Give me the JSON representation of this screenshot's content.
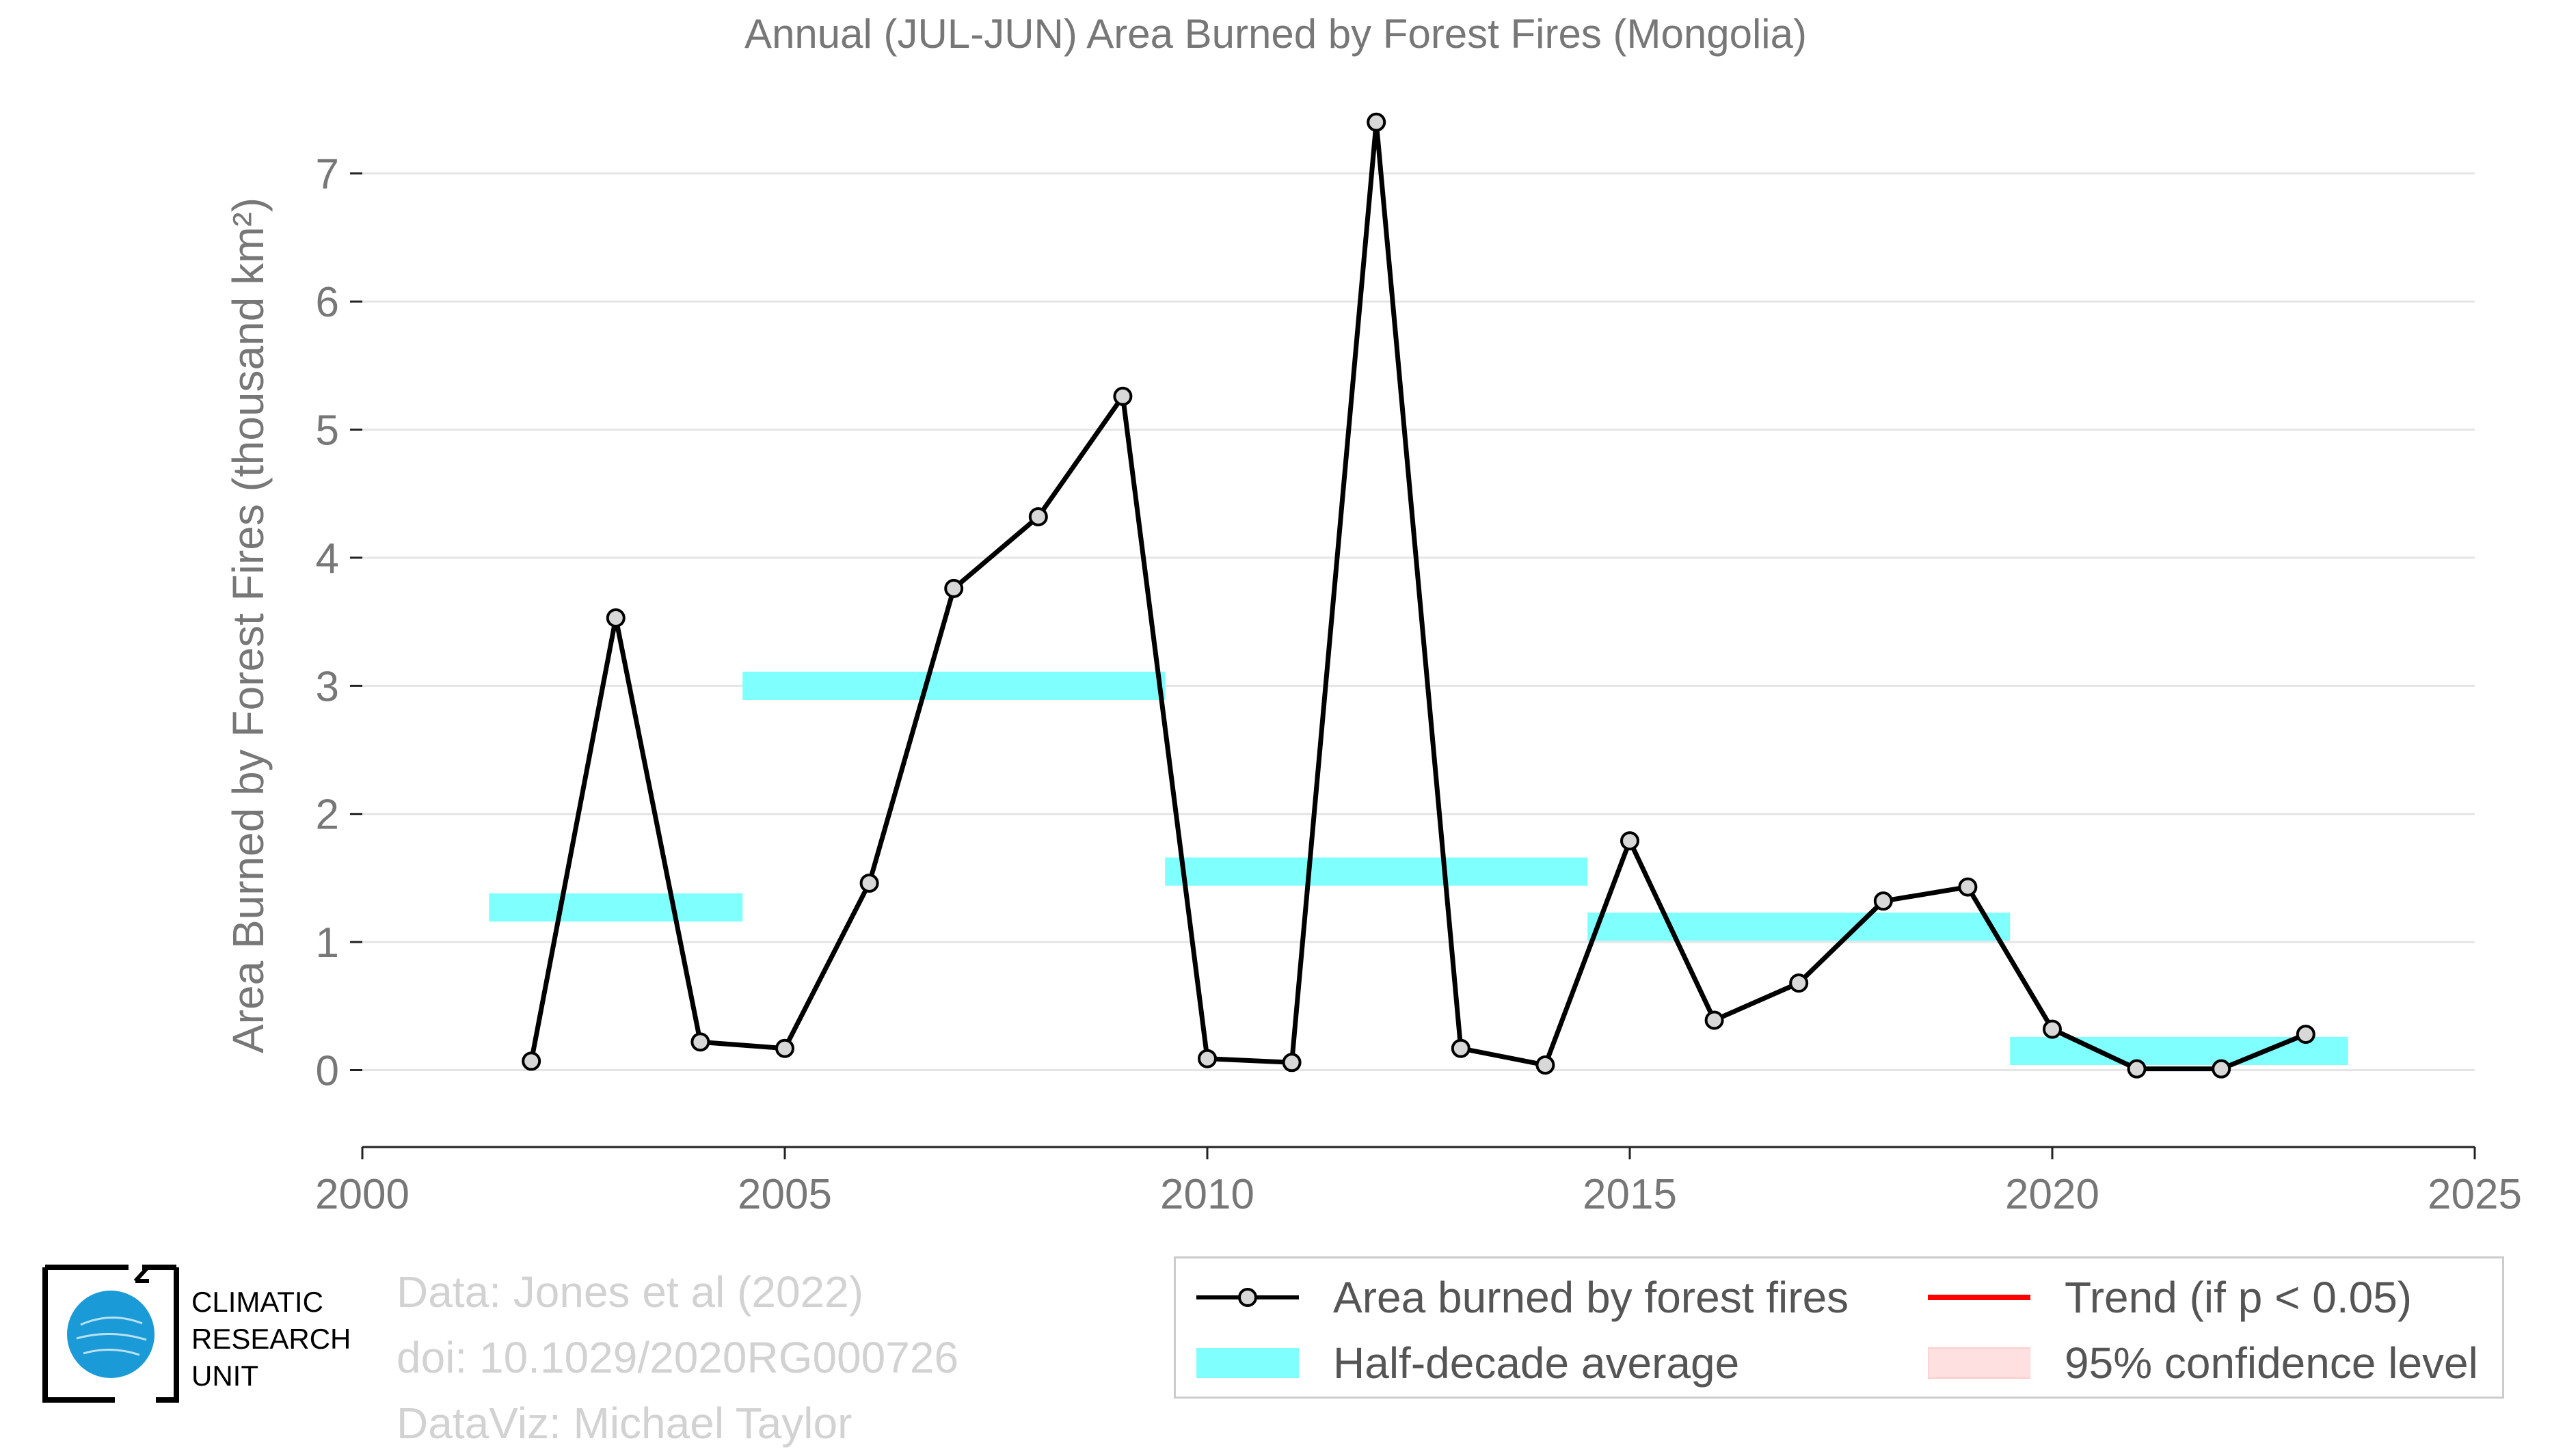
{
  "chart_data": {
    "type": "line",
    "title": "Annual (JUL-JUN) Area Burned by Forest Fires (Mongolia)",
    "xlabel": "",
    "ylabel": "Area Burned by Forest Fires (thousand km²)",
    "xlim": [
      2000,
      2025
    ],
    "ylim": [
      -0.6,
      7.5
    ],
    "x_ticks": [
      2000,
      2005,
      2010,
      2015,
      2020,
      2025
    ],
    "y_ticks": [
      0,
      1,
      2,
      3,
      4,
      5,
      6,
      7
    ],
    "grid": "horizontal",
    "legend_position": "bottom-right",
    "series": [
      {
        "name": "Area burned by forest fires",
        "color": "#000000",
        "marker": "circle",
        "x": [
          2002,
          2003,
          2004,
          2005,
          2006,
          2007,
          2008,
          2009,
          2010,
          2011,
          2012,
          2013,
          2014,
          2015,
          2016,
          2017,
          2018,
          2019,
          2020,
          2021,
          2022,
          2023
        ],
        "y": [
          0.07,
          3.53,
          0.22,
          0.17,
          1.46,
          3.76,
          4.32,
          5.26,
          0.09,
          0.06,
          7.4,
          0.17,
          0.04,
          1.79,
          0.39,
          0.68,
          1.32,
          1.43,
          0.32,
          0.01,
          0.01,
          0.28
        ]
      },
      {
        "name": "Half-decade average",
        "color": "#80ffff",
        "type": "bars",
        "segments": [
          {
            "x_start": 2001.5,
            "x_end": 2004.5,
            "y": 1.27
          },
          {
            "x_start": 2004.5,
            "x_end": 2009.5,
            "y": 3.0
          },
          {
            "x_start": 2009.5,
            "x_end": 2014.5,
            "y": 1.55
          },
          {
            "x_start": 2014.5,
            "x_end": 2019.5,
            "y": 1.12
          },
          {
            "x_start": 2019.5,
            "x_end": 2023.5,
            "y": 0.15
          }
        ]
      }
    ],
    "legend": [
      {
        "label": "Area burned by forest fires",
        "key": "line-marker",
        "color": "#000000"
      },
      {
        "label": "Trend (if p < 0.05)",
        "key": "line",
        "color": "#ff0000"
      },
      {
        "label": "Half-decade average",
        "key": "band",
        "color": "#80ffff"
      },
      {
        "label": "95% confidence level",
        "key": "band",
        "color": "#ffe0e0"
      }
    ]
  },
  "credits": {
    "line1": "Data: Jones et al (2022)",
    "line2": "doi: 10.1029/2020RG000726",
    "line3": "DataViz: Michael Taylor"
  },
  "logo": {
    "line1": "CLIMATIC",
    "line2": "RESEARCH",
    "line3": "UNIT"
  },
  "colors": {
    "text": "#777777",
    "grid": "#e5e5e5",
    "average": "#80ffff",
    "trend": "#ff0000",
    "confidence": "#ffe0e0",
    "logo_globe": "#1a9ad6"
  }
}
